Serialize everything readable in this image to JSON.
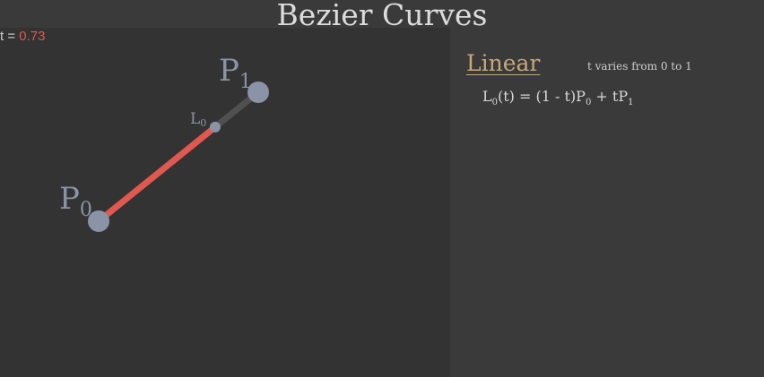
{
  "title": "Bezier Curves",
  "t_readout": {
    "label": "t = ",
    "value": "0.73"
  },
  "t_value": 0.73,
  "section": {
    "title": "Linear",
    "t_range": "t varies from 0 to 1",
    "formula": {
      "lhs_var": "L",
      "lhs_sub": "0",
      "lhs_arg": "(t) = (1 - t)P",
      "p0_sub": "0",
      "mid": " + tP",
      "p1_sub": "1"
    }
  },
  "points": {
    "p0": {
      "letter": "P",
      "sub": "0"
    },
    "p1": {
      "letter": "P",
      "sub": "1"
    },
    "l0": {
      "letter": "L",
      "sub": "0"
    }
  },
  "colors": {
    "background": "#333333",
    "accent": "#e0584f",
    "point": "#8a94a6",
    "segment_remaining": "#505050",
    "section_title": "#c8a87a"
  }
}
